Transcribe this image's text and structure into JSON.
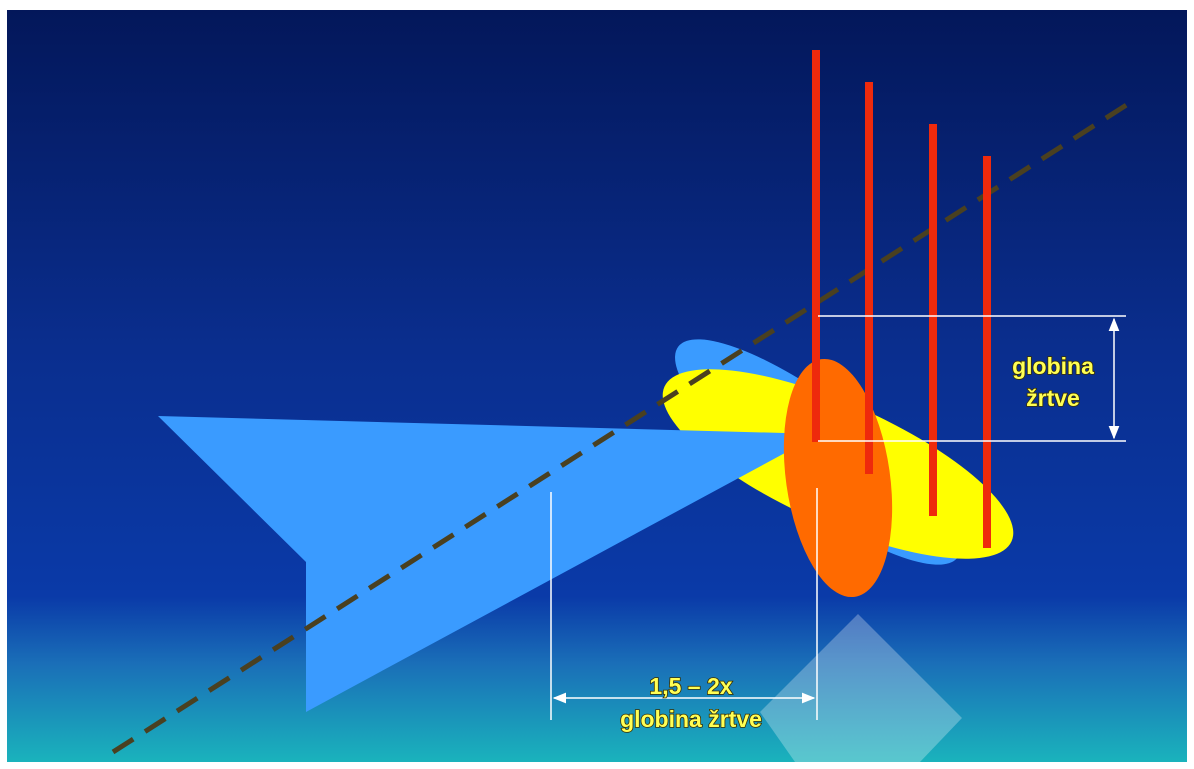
{
  "diagram": {
    "depth_label": {
      "line1": "globina",
      "line2": "žrtve"
    },
    "distance_label": {
      "line1": "1,5 – 2x",
      "line2": "globina žrtve"
    },
    "probe_count": 4
  },
  "colors": {
    "background_top": "#03175a",
    "background_mid": "#0b2a8c",
    "background_bottom": "#1aa7b7",
    "probe": "#ee2a0c",
    "arrow_shape": "#3a9bff",
    "blue_ellipse": "#3a9bff",
    "yellow_ellipse": "#ffff00",
    "orange_ellipse": "#ff6a00",
    "label_text": "#ffff55",
    "dimension_lines": "#ffffff",
    "dashed_axis": "#4a4020"
  }
}
